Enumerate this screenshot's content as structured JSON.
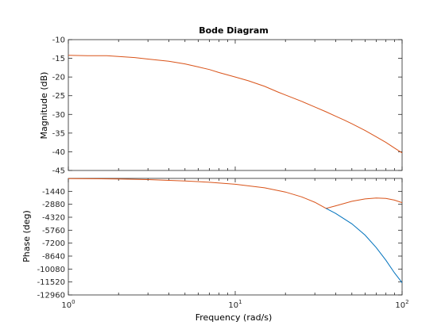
{
  "chart_data": [
    {
      "type": "line",
      "title": "Bode Diagram",
      "xlabel": "Frequency  (rad/s)",
      "ylabel": "Magnitude (dB)",
      "xscale": "log",
      "xlim": [
        1,
        100
      ],
      "ylim": [
        -45,
        -10
      ],
      "yticks": [
        -10,
        -15,
        -20,
        -25,
        -30,
        -35,
        -40,
        -45
      ],
      "grid": false,
      "series": [
        {
          "color": "#d95319",
          "x": [
            1,
            1.3,
            1.7,
            2,
            2.5,
            3,
            4,
            5,
            6,
            7,
            8,
            10,
            12,
            15,
            18,
            20,
            25,
            30,
            35,
            40,
            45,
            50,
            60,
            70,
            80,
            90,
            100
          ],
          "y": [
            -14.2,
            -14.3,
            -14.3,
            -14.5,
            -14.8,
            -15.2,
            -15.8,
            -16.5,
            -17.3,
            -18.0,
            -18.8,
            -20.0,
            -21.0,
            -22.5,
            -24.0,
            -24.8,
            -26.5,
            -28.0,
            -29.3,
            -30.5,
            -31.5,
            -32.5,
            -34.3,
            -36.0,
            -37.5,
            -39.0,
            -40.3
          ]
        }
      ]
    },
    {
      "type": "line",
      "xlabel": "Frequency  (rad/s)",
      "ylabel": "Phase (deg)",
      "xscale": "log",
      "xlim": [
        1,
        100
      ],
      "ylim": [
        -12960,
        0
      ],
      "yticks": [
        -1440,
        -2880,
        -4320,
        -5760,
        -7200,
        -8640,
        -10080,
        -11520,
        -12960
      ],
      "xticks": [
        "10^0",
        "10^1",
        "10^2"
      ],
      "grid": false,
      "series": [
        {
          "color": "#d95319",
          "x": [
            1,
            2,
            3,
            5,
            7,
            10,
            15,
            20,
            25,
            30,
            35,
            40,
            50,
            60,
            70,
            80,
            90,
            100
          ],
          "y": [
            -14,
            -60,
            -130,
            -280,
            -430,
            -650,
            -1050,
            -1520,
            -2050,
            -2650,
            -3330,
            -3050,
            -2550,
            -2280,
            -2180,
            -2220,
            -2420,
            -2700
          ]
        },
        {
          "color": "#0072bd",
          "x": [
            35,
            40,
            50,
            60,
            70,
            80,
            90,
            100
          ],
          "y": [
            -3330,
            -3900,
            -5050,
            -6300,
            -7700,
            -9100,
            -10500,
            -11600
          ]
        }
      ]
    }
  ]
}
